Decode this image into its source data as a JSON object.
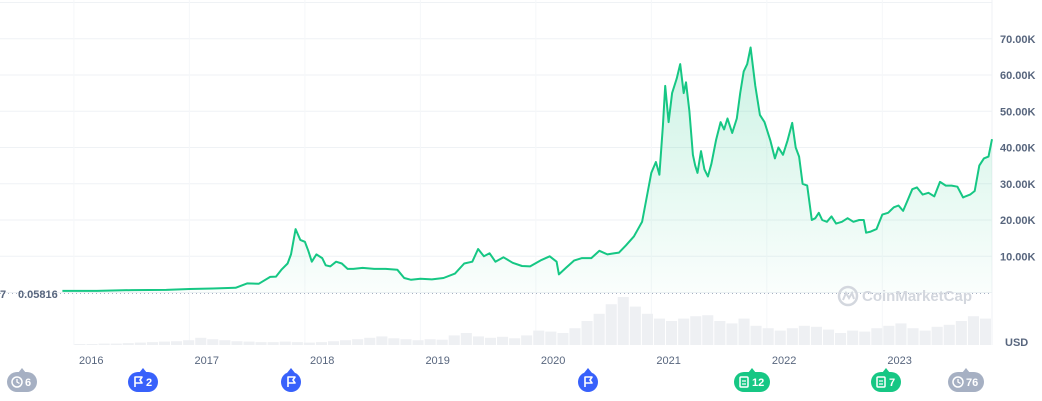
{
  "chart_data": {
    "type": "area",
    "title": "",
    "xlabel": "",
    "ylabel": "",
    "unit": "USD",
    "ylim": [
      0,
      80000
    ],
    "y_ticks": [
      "10.00K",
      "20.00K",
      "30.00K",
      "40.00K",
      "50.00K",
      "60.00K",
      "70.00K"
    ],
    "y_tick_values": [
      10000,
      20000,
      30000,
      40000,
      50000,
      60000,
      70000
    ],
    "x_ticks": [
      "2016",
      "2017",
      "2018",
      "2019",
      "2020",
      "2021",
      "2022",
      "2023"
    ],
    "x_range": [
      2015.9,
      2023.95
    ],
    "baseline_label": "0.05816",
    "grid": true,
    "line_color": "#16c784",
    "series": [
      {
        "x": [
          2015.9,
          2016.2,
          2016.5,
          2016.8,
          2017.0,
          2017.2,
          2017.4,
          2017.5,
          2017.6,
          2017.7,
          2017.75,
          2017.8,
          2017.85,
          2017.88,
          2017.92,
          2017.96,
          2018.0,
          2018.03,
          2018.06,
          2018.1,
          2018.15,
          2018.18,
          2018.22,
          2018.27,
          2018.32,
          2018.37,
          2018.42,
          2018.5,
          2018.6,
          2018.7,
          2018.8,
          2018.86,
          2018.92,
          2019.0,
          2019.1,
          2019.2,
          2019.3,
          2019.38,
          2019.45,
          2019.5,
          2019.55,
          2019.6,
          2019.65,
          2019.72,
          2019.8,
          2019.88,
          2019.95,
          2020.05,
          2020.12,
          2020.18,
          2020.2,
          2020.26,
          2020.33,
          2020.4,
          2020.48,
          2020.55,
          2020.62,
          2020.68,
          2020.72,
          2020.78,
          2020.85,
          2020.92,
          2020.97,
          2021.0,
          2021.04,
          2021.07,
          2021.1,
          2021.12,
          2021.15,
          2021.18,
          2021.22,
          2021.25,
          2021.28,
          2021.3,
          2021.33,
          2021.36,
          2021.38,
          2021.4,
          2021.43,
          2021.46,
          2021.49,
          2021.52,
          2021.56,
          2021.6,
          2021.63,
          2021.66,
          2021.7,
          2021.74,
          2021.77,
          2021.8,
          2021.83,
          2021.86,
          2021.9,
          2021.94,
          2021.98,
          2022.03,
          2022.07,
          2022.1,
          2022.14,
          2022.18,
          2022.22,
          2022.25,
          2022.28,
          2022.31,
          2022.35,
          2022.39,
          2022.42,
          2022.45,
          2022.48,
          2022.52,
          2022.56,
          2022.6,
          2022.65,
          2022.7,
          2022.75,
          2022.8,
          2022.84,
          2022.86,
          2022.9,
          2022.95,
          2023.0,
          2023.05,
          2023.1,
          2023.14,
          2023.18,
          2023.22,
          2023.26,
          2023.3,
          2023.35,
          2023.4,
          2023.45,
          2023.5,
          2023.55,
          2023.6,
          2023.65,
          2023.7,
          2023.72,
          2023.76,
          2023.8,
          2023.84,
          2023.88,
          2023.92,
          2023.95
        ],
        "y": [
          430,
          440,
          650,
          720,
          960,
          1100,
          1300,
          2500,
          2400,
          4300,
          4400,
          6400,
          8000,
          10500,
          17500,
          14500,
          14000,
          11500,
          8500,
          10500,
          9500,
          7500,
          7200,
          8500,
          8000,
          6500,
          6500,
          6800,
          6500,
          6500,
          6300,
          4000,
          3500,
          3800,
          3600,
          4000,
          5200,
          8000,
          8500,
          12000,
          10000,
          10800,
          8500,
          9700,
          8200,
          7300,
          7200,
          9000,
          10000,
          8500,
          5000,
          6800,
          8800,
          9500,
          9500,
          11500,
          10500,
          10800,
          11000,
          13000,
          15500,
          19500,
          28000,
          33000,
          36000,
          32500,
          46000,
          57000,
          47000,
          55000,
          59000,
          63000,
          55000,
          58000,
          50000,
          38000,
          35000,
          33000,
          39000,
          34000,
          32000,
          35500,
          42000,
          47000,
          45000,
          48000,
          44000,
          48000,
          55000,
          61000,
          63000,
          67600,
          57000,
          49000,
          47000,
          42000,
          37000,
          40000,
          38000,
          42000,
          46800,
          40000,
          37500,
          30000,
          29500,
          20000,
          20500,
          22000,
          20000,
          19500,
          21000,
          19000,
          19500,
          20500,
          19500,
          20000,
          20000,
          16500,
          16800,
          17500,
          21500,
          22000,
          23500,
          24000,
          22500,
          25500,
          28500,
          29000,
          27000,
          27500,
          26500,
          30500,
          29500,
          29500,
          29200,
          26200,
          26500,
          27000,
          28000,
          35000,
          37000,
          37500,
          42300
        ]
      }
    ],
    "volume": [
      0.0,
      0.02,
      0.02,
      0.03,
      0.03,
      0.04,
      0.05,
      0.06,
      0.07,
      0.08,
      0.1,
      0.15,
      0.12,
      0.1,
      0.08,
      0.07,
      0.06,
      0.06,
      0.07,
      0.06,
      0.05,
      0.06,
      0.08,
      0.1,
      0.12,
      0.15,
      0.18,
      0.14,
      0.12,
      0.1,
      0.12,
      0.11,
      0.2,
      0.25,
      0.18,
      0.15,
      0.17,
      0.14,
      0.2,
      0.3,
      0.28,
      0.25,
      0.35,
      0.5,
      0.65,
      0.85,
      1.0,
      0.8,
      0.65,
      0.55,
      0.5,
      0.55,
      0.6,
      0.62,
      0.5,
      0.45,
      0.55,
      0.4,
      0.35,
      0.3,
      0.35,
      0.4,
      0.38,
      0.32,
      0.25,
      0.3,
      0.28,
      0.35,
      0.4,
      0.45,
      0.35,
      0.3,
      0.38,
      0.42,
      0.5,
      0.6,
      0.55
    ]
  },
  "legend_badges": [
    {
      "label": "6",
      "icon": "history-icon",
      "color": "#a6b0c3"
    },
    {
      "label": "2",
      "icon": "flag-icon",
      "color": "#3861fb"
    },
    {
      "label": "",
      "icon": "flag-icon",
      "color": "#3861fb"
    },
    {
      "label": "",
      "icon": "flag-icon",
      "color": "#3861fb"
    },
    {
      "label": "12",
      "icon": "document-icon",
      "color": "#16c784"
    },
    {
      "label": "7",
      "icon": "document-icon",
      "color": "#16c784"
    },
    {
      "label": "76",
      "icon": "clock-icon",
      "color": "#a6b0c3"
    }
  ],
  "watermark": "CoinMarketCap"
}
